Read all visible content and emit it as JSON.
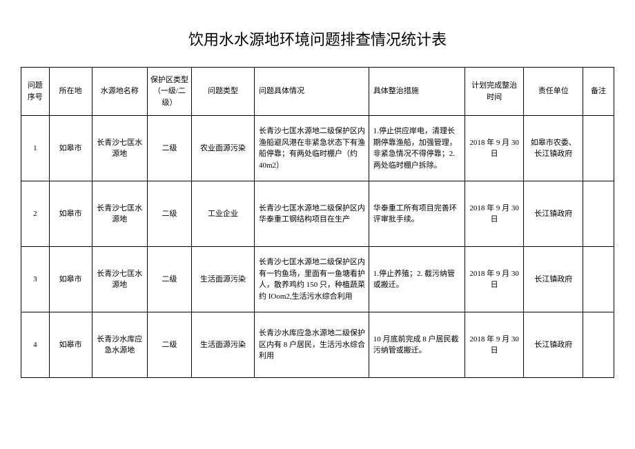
{
  "title": "饮用水水源地环境问题排查情况统计表",
  "columns": [
    "问题序号",
    "所在地",
    "水源地名称",
    "保护区类型（一级/二级）",
    "问题类型",
    "问题具体情况",
    "具体整治措施",
    "计划完成整治时间",
    "责任单位",
    "备注"
  ],
  "rows": [
    {
      "seq": "1",
      "location": "如皋市",
      "source_name": "长青沙七匡水源地",
      "zone_type": "二级",
      "issue_type": "农业面源污染",
      "issue_detail": "长青沙七匡水源地二级保护区内渔船避风港在非紧急状态下有渔船停靠；有两处临时棚户（约 40m2）",
      "measures": "1.停止供应岸电，清理长期停靠渔船，加强管理，非紧急情况不得停靠；2.两处临时棚户拆除。",
      "plan_date": "2018 年 9 月 30 日",
      "responsible": "如皋市农委、长江镇政府",
      "remark": ""
    },
    {
      "seq": "2",
      "location": "如皋市",
      "source_name": "长青沙七匡水源地",
      "zone_type": "二级",
      "issue_type": "工业企业",
      "issue_detail": "长青沙七匡水源地二级保护区内华泰重工钢结构项目在生产",
      "measures": "华泰重工所有项目完善环评审批手续。",
      "plan_date": "2018 年 9 月 30 日",
      "responsible": "长江镇政府",
      "remark": ""
    },
    {
      "seq": "3",
      "location": "如皋市",
      "source_name": "长青沙七匡水源地",
      "zone_type": "二级",
      "issue_type": "生活面源污染",
      "issue_detail": "长青沙七匡水源地二级保护区内有一钓鱼场，里面有一鱼塘看护人，散养鸡约 150 只，种植蔬菜约 IOom2,生活污水综合利用",
      "measures": "1.停止养殖；2. 截污纳管或搬迁。",
      "plan_date": "2018 年 9 月 30 日",
      "responsible": "长江镇政府",
      "remark": ""
    },
    {
      "seq": "4",
      "location": "如皋市",
      "source_name": "长青沙水库应急水源地",
      "zone_type": "二级",
      "issue_type": "生活面源污染",
      "issue_detail": "长青沙水库应急水源地二级保护区内有 8 户居民，生活污水综合利用",
      "measures": "10 月底前完成 8 户居民截污纳管或搬迁。",
      "plan_date": "2018 年 9 月 30 日",
      "responsible": "长江镇政府",
      "remark": ""
    }
  ]
}
